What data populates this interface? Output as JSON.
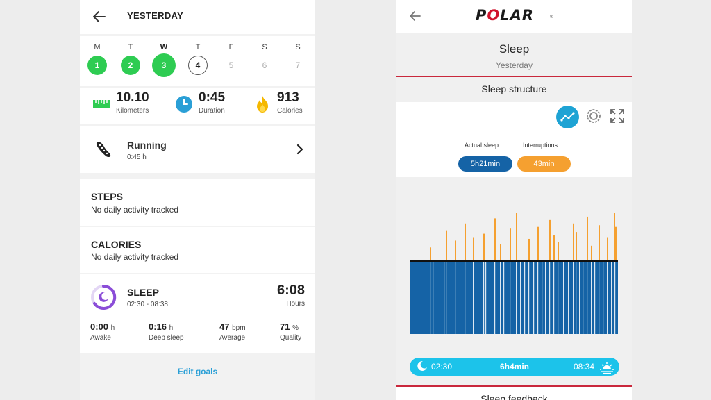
{
  "suunto": {
    "header": {
      "title": "YESTERDAY"
    },
    "week": [
      {
        "letter": "M",
        "num": "1",
        "state": "done"
      },
      {
        "letter": "T",
        "num": "2",
        "state": "done"
      },
      {
        "letter": "W",
        "num": "3",
        "state": "done-big"
      },
      {
        "letter": "T",
        "num": "4",
        "state": "today"
      },
      {
        "letter": "F",
        "num": "5",
        "state": "future"
      },
      {
        "letter": "S",
        "num": "6",
        "state": "future"
      },
      {
        "letter": "S",
        "num": "7",
        "state": "future"
      }
    ],
    "stats": [
      {
        "value": "10.10",
        "label": "Kilometers",
        "icon": "ruler-icon"
      },
      {
        "value": "0:45",
        "label": "Duration",
        "icon": "clock-icon"
      },
      {
        "value": "913",
        "label": "Calories",
        "icon": "flame-icon"
      }
    ],
    "activity": {
      "name": "Running",
      "duration": "0:45 h",
      "icon": "running-shoe-icon"
    },
    "steps": {
      "title": "STEPS",
      "subtitle": "No daily activity tracked"
    },
    "calories": {
      "title": "CALORIES",
      "subtitle": "No daily activity tracked"
    },
    "sleep": {
      "title": "SLEEP",
      "range": "02:30 - 08:38",
      "hours": "6:08",
      "hours_label": "Hours",
      "metrics": [
        {
          "value": "0:00",
          "unit": "h",
          "label": "Awake"
        },
        {
          "value": "0:16",
          "unit": "h",
          "label": "Deep sleep"
        },
        {
          "value": "47",
          "unit": "bpm",
          "label": "Average"
        },
        {
          "value": "71",
          "unit": "%",
          "label": "Quality"
        }
      ]
    },
    "edit_goals": "Edit goals",
    "colors": {
      "green": "#2ecc52",
      "link": "#2a9fd6",
      "purple": "#8b4dd8"
    }
  },
  "polar": {
    "logo": {
      "text_before": "P",
      "text_o": "O",
      "text_after": "LAR",
      "registered": "®"
    },
    "title": "Sleep",
    "subtitle": "Yesterday",
    "section": "Sleep structure",
    "legend": {
      "actual_label": "Actual sleep",
      "actual_value": "5h21min",
      "interruptions_label": "Interruptions",
      "interruptions_value": "43min"
    },
    "timebar": {
      "start": "02:30",
      "duration": "6h4min",
      "end": "08:34"
    },
    "feedback_title": "Sleep feedback",
    "colors": {
      "sleep": "#1563a6",
      "interruption": "#f5a030",
      "accent": "#1ea3d4",
      "red": "#c9283c",
      "timebar": "#1cc3ea"
    },
    "chart_data": {
      "type": "bar",
      "title": "",
      "series": [
        {
          "values": [
            0.08,
            0.18,
            0.12,
            0.22,
            0.14,
            0.16,
            0.25,
            0.1,
            0.19,
            0.28,
            0.13,
            0.2,
            0.24,
            0.15,
            0.11,
            0.22,
            0.17,
            0.26,
            0.09,
            0.21,
            0.14,
            0.28,
            0.2
          ]
        }
      ],
      "baseline": "full-sleep"
    }
  }
}
